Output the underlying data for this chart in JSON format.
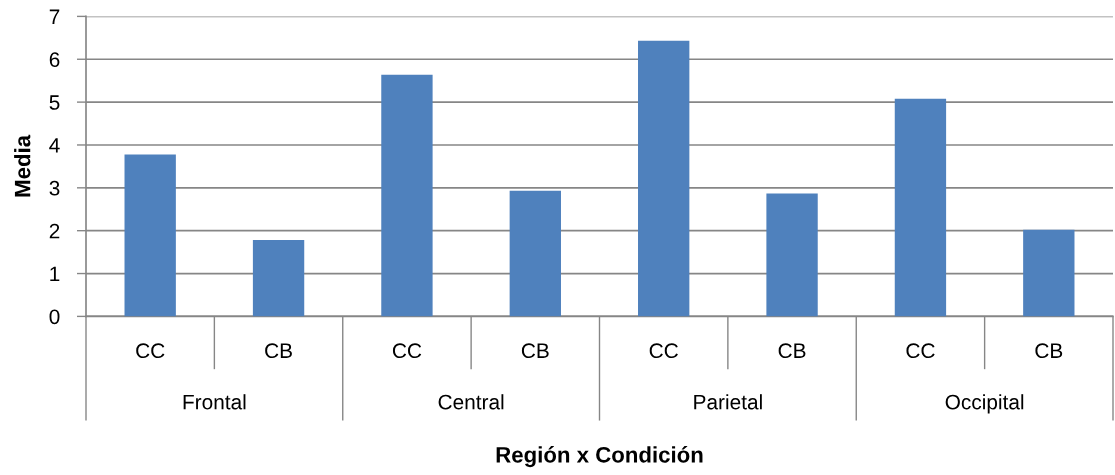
{
  "chart_data": {
    "type": "bar",
    "xlabel": "Región x Condición",
    "ylabel": "Media",
    "categories": [
      "CC",
      "CB",
      "CC",
      "CB",
      "CC",
      "CB",
      "CC",
      "CB"
    ],
    "annotations": [
      "Frontal",
      "Central",
      "Parietal",
      "Occipital"
    ],
    "values": [
      3.78,
      1.78,
      5.64,
      2.93,
      6.43,
      2.87,
      5.08,
      2.02
    ],
    "color": "#4f81bd",
    "ylim": [
      0,
      7
    ],
    "yticks": [
      0,
      1,
      2,
      3,
      4,
      5,
      6,
      7
    ],
    "grid": "y"
  }
}
